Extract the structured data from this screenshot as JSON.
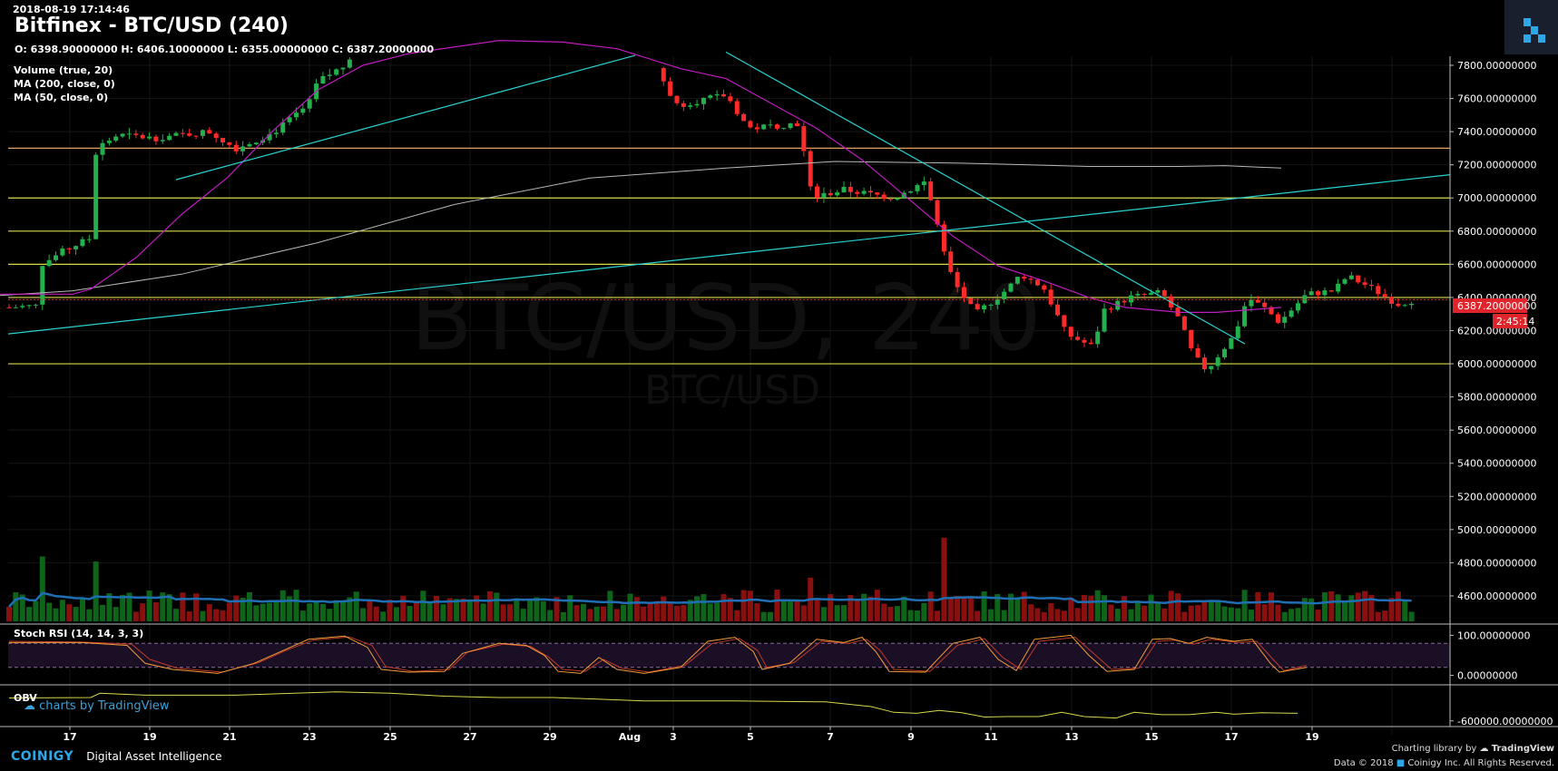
{
  "header": {
    "timestamp": "2018-08-19 17:14:46",
    "title": "Bitfinex - BTC/USD (240)",
    "ohlc": "O: 6398.90000000 H: 6406.10000000 L: 6355.00000000 C: 6387.20000000"
  },
  "indicators": {
    "volume": "Volume (true, 20)",
    "ma200": "MA (200, close, 0)",
    "ma50": "MA (50, close, 0)",
    "stoch": "Stoch RSI (14, 14, 3, 3)",
    "obv": "OBV"
  },
  "watermark": {
    "main": "BTC/USD, 240",
    "sub": "BTC/USD"
  },
  "price_label": {
    "value": "6387.20000000",
    "countdown": "2:45:14",
    "color": "#e0242b"
  },
  "credits": {
    "tradingview": "charts by TradingView",
    "charting_library": "Charting library by",
    "tradingview_logo": "TradingView",
    "copyright": "Data © 2018",
    "company": "Coinigy Inc. All Rights Reserved."
  },
  "footer": {
    "brand": "COINIGY",
    "tagline": "Digital Asset Intelligence"
  },
  "colors": {
    "up": "#22b14c",
    "down": "#ff2a2a",
    "ma200": "#b8b8b8",
    "ma50": "#c01cbf",
    "trend": "#2ad2d2",
    "hline": "#d8d84a",
    "hline_top": "#e0a060",
    "volume_ma": "#1e6fb3",
    "stoch_k": "#f29c38",
    "stoch_d": "#c0392b",
    "obv": "#d8d84a"
  },
  "chart_data": {
    "type": "candlestick",
    "symbol": "BTC/USD",
    "exchange": "Bitfinex",
    "interval": "240",
    "x_ticks": [
      "17",
      "19",
      "21",
      "23",
      "25",
      "27",
      "29",
      "Aug",
      "3",
      "5",
      "7",
      "9",
      "11",
      "13",
      "15",
      "17",
      "19"
    ],
    "y_ticks": [
      "7800.00000000",
      "7600.00000000",
      "7400.00000000",
      "7200.00000000",
      "7000.00000000",
      "6800.00000000",
      "6600.00000000",
      "6400.00000000",
      "6200.00000000",
      "6000.00000000",
      "5800.00000000",
      "5600.00000000",
      "5400.00000000",
      "5200.00000000",
      "5000.00000000",
      "4800.00000000",
      "4600.00000000"
    ],
    "ylim": [
      4540,
      7850
    ],
    "horizontal_levels": [
      7300,
      7000,
      6800,
      6600,
      6400,
      6000
    ],
    "ma200_path": [
      [
        -5,
        6410
      ],
      [
        80,
        6440
      ],
      [
        200,
        6540
      ],
      [
        350,
        6730
      ],
      [
        500,
        6960
      ],
      [
        650,
        7120
      ],
      [
        800,
        7180
      ],
      [
        920,
        7220
      ],
      [
        1060,
        7210
      ],
      [
        1200,
        7190
      ],
      [
        1300,
        7190
      ],
      [
        1350,
        7195
      ],
      [
        1412,
        7180
      ]
    ],
    "ma50_path": [
      [
        -5,
        6420
      ],
      [
        80,
        6420
      ],
      [
        100,
        6450
      ],
      [
        150,
        6640
      ],
      [
        200,
        6900
      ],
      [
        250,
        7120
      ],
      [
        300,
        7400
      ],
      [
        350,
        7650
      ],
      [
        400,
        7800
      ],
      [
        450,
        7870
      ],
      [
        500,
        7910
      ],
      [
        550,
        7950
      ],
      [
        620,
        7940
      ],
      [
        680,
        7900
      ],
      [
        750,
        7780
      ],
      [
        800,
        7720
      ],
      [
        850,
        7570
      ],
      [
        900,
        7420
      ],
      [
        950,
        7230
      ],
      [
        1000,
        7000
      ],
      [
        1050,
        6770
      ],
      [
        1100,
        6590
      ],
      [
        1150,
        6500
      ],
      [
        1200,
        6400
      ],
      [
        1240,
        6340
      ],
      [
        1300,
        6310
      ],
      [
        1340,
        6310
      ],
      [
        1412,
        6340
      ]
    ],
    "stoch_rsi": {
      "ylim": [
        -10,
        110
      ],
      "upper": 80,
      "lower": 20,
      "y_ticks": [
        "100.00000000",
        "0.00000000"
      ],
      "k": [
        [
          0,
          82
        ],
        [
          80,
          82
        ],
        [
          130,
          75
        ],
        [
          150,
          30
        ],
        [
          180,
          15
        ],
        [
          230,
          5
        ],
        [
          270,
          30
        ],
        [
          300,
          60
        ],
        [
          330,
          90
        ],
        [
          370,
          98
        ],
        [
          395,
          70
        ],
        [
          410,
          15
        ],
        [
          440,
          8
        ],
        [
          480,
          10
        ],
        [
          500,
          55
        ],
        [
          540,
          80
        ],
        [
          570,
          75
        ],
        [
          590,
          50
        ],
        [
          605,
          10
        ],
        [
          630,
          5
        ],
        [
          650,
          45
        ],
        [
          670,
          15
        ],
        [
          700,
          5
        ],
        [
          740,
          20
        ],
        [
          770,
          85
        ],
        [
          800,
          95
        ],
        [
          820,
          60
        ],
        [
          830,
          15
        ],
        [
          860,
          30
        ],
        [
          890,
          90
        ],
        [
          920,
          82
        ],
        [
          940,
          95
        ],
        [
          955,
          60
        ],
        [
          970,
          10
        ],
        [
          1010,
          8
        ],
        [
          1040,
          80
        ],
        [
          1070,
          95
        ],
        [
          1090,
          40
        ],
        [
          1110,
          12
        ],
        [
          1130,
          90
        ],
        [
          1170,
          100
        ],
        [
          1190,
          50
        ],
        [
          1210,
          10
        ],
        [
          1240,
          15
        ],
        [
          1260,
          90
        ],
        [
          1280,
          92
        ],
        [
          1300,
          80
        ],
        [
          1320,
          95
        ],
        [
          1350,
          85
        ],
        [
          1370,
          90
        ],
        [
          1390,
          30
        ],
        [
          1400,
          8
        ],
        [
          1430,
          20
        ]
      ],
      "d": [
        [
          0,
          85
        ],
        [
          80,
          83
        ],
        [
          135,
          78
        ],
        [
          155,
          40
        ],
        [
          185,
          18
        ],
        [
          235,
          8
        ],
        [
          275,
          32
        ],
        [
          305,
          62
        ],
        [
          335,
          88
        ],
        [
          375,
          96
        ],
        [
          400,
          75
        ],
        [
          415,
          22
        ],
        [
          445,
          10
        ],
        [
          485,
          15
        ],
        [
          505,
          58
        ],
        [
          545,
          78
        ],
        [
          575,
          72
        ],
        [
          595,
          45
        ],
        [
          610,
          15
        ],
        [
          635,
          10
        ],
        [
          655,
          40
        ],
        [
          675,
          18
        ],
        [
          705,
          8
        ],
        [
          745,
          25
        ],
        [
          775,
          80
        ],
        [
          805,
          92
        ],
        [
          825,
          62
        ],
        [
          835,
          20
        ],
        [
          865,
          32
        ],
        [
          895,
          85
        ],
        [
          925,
          80
        ],
        [
          945,
          90
        ],
        [
          960,
          62
        ],
        [
          975,
          15
        ],
        [
          1015,
          10
        ],
        [
          1045,
          75
        ],
        [
          1075,
          92
        ],
        [
          1095,
          45
        ],
        [
          1115,
          15
        ],
        [
          1135,
          85
        ],
        [
          1175,
          95
        ],
        [
          1195,
          55
        ],
        [
          1215,
          15
        ],
        [
          1245,
          18
        ],
        [
          1265,
          85
        ],
        [
          1285,
          88
        ],
        [
          1305,
          78
        ],
        [
          1325,
          90
        ],
        [
          1355,
          82
        ],
        [
          1375,
          85
        ],
        [
          1395,
          35
        ],
        [
          1405,
          12
        ],
        [
          1430,
          25
        ]
      ]
    },
    "obv": {
      "ylim": [
        -700000,
        100000
      ],
      "y_ticks": [
        "-600000.00000000"
      ],
      "path": [
        [
          0,
          -120000
        ],
        [
          90,
          -110000
        ],
        [
          100,
          -20000
        ],
        [
          150,
          -60000
        ],
        [
          250,
          -60000
        ],
        [
          360,
          10000
        ],
        [
          420,
          -20000
        ],
        [
          480,
          -80000
        ],
        [
          540,
          -110000
        ],
        [
          600,
          -110000
        ],
        [
          700,
          -180000
        ],
        [
          800,
          -180000
        ],
        [
          900,
          -200000
        ],
        [
          950,
          -300000
        ],
        [
          975,
          -420000
        ],
        [
          1000,
          -440000
        ],
        [
          1025,
          -380000
        ],
        [
          1050,
          -430000
        ],
        [
          1075,
          -520000
        ],
        [
          1100,
          -510000
        ],
        [
          1135,
          -510000
        ],
        [
          1160,
          -420000
        ],
        [
          1185,
          -510000
        ],
        [
          1220,
          -540000
        ],
        [
          1240,
          -420000
        ],
        [
          1270,
          -470000
        ],
        [
          1300,
          -470000
        ],
        [
          1330,
          -420000
        ],
        [
          1350,
          -460000
        ],
        [
          1380,
          -430000
        ],
        [
          1420,
          -440000
        ]
      ]
    }
  }
}
